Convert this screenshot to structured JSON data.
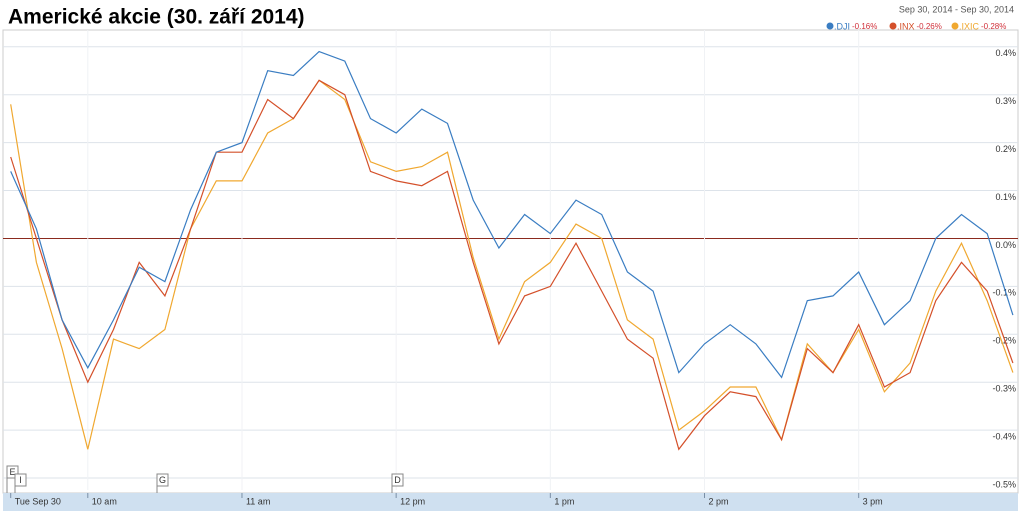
{
  "chart_data": {
    "type": "line",
    "title": "Americké akcie (30. září 2014)",
    "date_range": "Sep 30, 2014  -  Sep 30, 2014",
    "x": [
      570,
      580,
      590,
      600,
      610,
      620,
      630,
      640,
      650,
      660,
      670,
      680,
      690,
      700,
      710,
      720,
      730,
      740,
      750,
      760,
      770,
      780,
      790,
      800,
      810,
      820,
      830,
      840,
      850,
      860,
      870,
      880,
      890,
      900,
      910,
      920,
      930,
      940,
      950,
      960
    ],
    "xlim": [
      567,
      962
    ],
    "xticks": [
      {
        "value": 570,
        "label": "Tue Sep 30"
      },
      {
        "value": 600,
        "label": "10 am"
      },
      {
        "value": 660,
        "label": "11 am"
      },
      {
        "value": 720,
        "label": "12 pm"
      },
      {
        "value": 780,
        "label": "1 pm"
      },
      {
        "value": 840,
        "label": "2 pm"
      },
      {
        "value": 900,
        "label": "3 pm"
      }
    ],
    "ylim": [
      -0.525,
      0.435
    ],
    "yticks": [
      {
        "value": 0.4,
        "label": "0.4%"
      },
      {
        "value": 0.3,
        "label": "0.3%"
      },
      {
        "value": 0.2,
        "label": "0.2%"
      },
      {
        "value": 0.1,
        "label": "0.1%"
      },
      {
        "value": 0,
        "label": "0.0%"
      },
      {
        "value": -0.1,
        "label": "-0.1%"
      },
      {
        "value": -0.2,
        "label": "-0.2%"
      },
      {
        "value": -0.3,
        "label": "-0.3%"
      },
      {
        "value": -0.4,
        "label": "-0.4%"
      },
      {
        "value": -0.5,
        "label": "-0.5%"
      }
    ],
    "grid": true,
    "flags": [
      "E",
      "I",
      "G",
      "D"
    ],
    "series": [
      {
        "name": ".DJI",
        "change": "-0.16%",
        "color": "#3a7dc2",
        "values": [
          0.14,
          0.02,
          -0.17,
          -0.27,
          -0.17,
          -0.06,
          -0.09,
          0.06,
          0.18,
          0.2,
          0.35,
          0.34,
          0.39,
          0.37,
          0.25,
          0.22,
          0.27,
          0.24,
          0.08,
          -0.02,
          0.05,
          0.01,
          0.08,
          0.05,
          -0.07,
          -0.11,
          -0.28,
          -0.22,
          -0.18,
          -0.22,
          -0.29,
          -0.13,
          -0.12,
          -0.07,
          -0.18,
          -0.13,
          0.0,
          0.05,
          0.01,
          -0.16
        ]
      },
      {
        "name": ".INX",
        "change": "-0.26%",
        "color": "#d4502a",
        "values": [
          0.17,
          0.0,
          -0.17,
          -0.3,
          -0.19,
          -0.05,
          -0.12,
          0.02,
          0.18,
          0.18,
          0.29,
          0.25,
          0.33,
          0.3,
          0.14,
          0.12,
          0.11,
          0.14,
          -0.05,
          -0.22,
          -0.12,
          -0.1,
          -0.01,
          -0.11,
          -0.21,
          -0.25,
          -0.44,
          -0.37,
          -0.32,
          -0.33,
          -0.42,
          -0.23,
          -0.28,
          -0.18,
          -0.31,
          -0.28,
          -0.13,
          -0.05,
          -0.11,
          -0.26
        ]
      },
      {
        "name": ".IXIC",
        "change": "-0.28%",
        "color": "#f0a830",
        "values": [
          0.28,
          -0.05,
          -0.23,
          -0.44,
          -0.21,
          -0.23,
          -0.19,
          0.02,
          0.12,
          0.12,
          0.22,
          0.25,
          0.33,
          0.29,
          0.16,
          0.14,
          0.15,
          0.18,
          -0.04,
          -0.21,
          -0.09,
          -0.05,
          0.03,
          0.0,
          -0.17,
          -0.21,
          -0.4,
          -0.36,
          -0.31,
          -0.31,
          -0.42,
          -0.22,
          -0.28,
          -0.19,
          -0.32,
          -0.26,
          -0.11,
          -0.01,
          -0.13,
          -0.28
        ]
      }
    ]
  }
}
